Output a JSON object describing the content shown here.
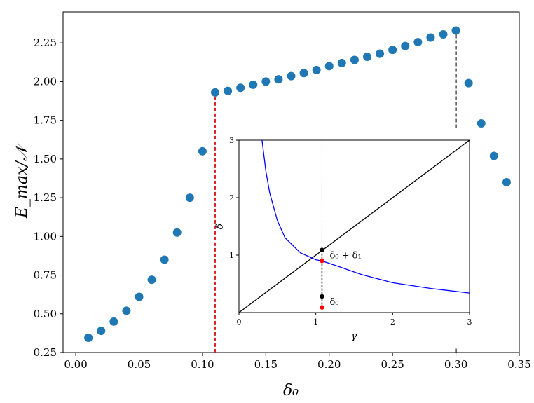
{
  "chart_data": [
    {
      "type": "scatter",
      "title": "",
      "xlabel": "δ₀",
      "ylabel": "E_max/𝒩",
      "xlim": [
        -0.01,
        0.35
      ],
      "ylim": [
        0.25,
        2.45
      ],
      "xticks": [
        "0.00",
        "0.05",
        "0.10",
        "0.15",
        "0.20",
        "0.25",
        "0.30",
        "0.35"
      ],
      "yticks": [
        "0.25",
        "0.50",
        "0.75",
        "1.00",
        "1.25",
        "1.50",
        "1.75",
        "2.00",
        "2.25"
      ],
      "grid": false,
      "marker_color": "#1f77b4",
      "series": [
        {
          "x": [
            0.01,
            0.02,
            0.03,
            0.04,
            0.05,
            0.06,
            0.07,
            0.08,
            0.09,
            0.1,
            0.11,
            0.12,
            0.13,
            0.14,
            0.15,
            0.16,
            0.17,
            0.18,
            0.19,
            0.2,
            0.21,
            0.22,
            0.23,
            0.24,
            0.25,
            0.26,
            0.27,
            0.28,
            0.29,
            0.3,
            0.31,
            0.32,
            0.33,
            0.34
          ],
          "y": [
            0.345,
            0.39,
            0.45,
            0.52,
            0.61,
            0.72,
            0.85,
            1.025,
            1.25,
            1.55,
            1.93,
            1.94,
            1.96,
            1.98,
            2.0,
            2.015,
            2.035,
            2.055,
            2.075,
            2.1,
            2.12,
            2.14,
            2.16,
            2.18,
            2.205,
            2.23,
            2.255,
            2.285,
            2.305,
            2.33,
            1.99,
            1.73,
            1.52,
            1.35
          ]
        }
      ],
      "vlines": [
        {
          "x": 0.11,
          "y_top": 1.93,
          "color": "#d62728",
          "style": "dashed"
        },
        {
          "x": 0.3,
          "y_top": 2.33,
          "color": "#000000",
          "style": "dashed"
        }
      ]
    },
    {
      "type": "line",
      "title": "",
      "xlabel": "γ",
      "ylabel": "δ",
      "xlim": [
        0,
        3
      ],
      "ylim": [
        0,
        3
      ],
      "xticks": [
        "0",
        "1",
        "2",
        "3"
      ],
      "yticks": [
        "1",
        "2",
        "3"
      ],
      "grid": false,
      "series": [
        {
          "kind": "diagonal",
          "color": "#000000",
          "points": [
            [
              0,
              0
            ],
            [
              3,
              3
            ]
          ]
        },
        {
          "kind": "hyperbola",
          "color": "#0000ff",
          "x": [
            0.3,
            0.35,
            0.4,
            0.5,
            0.6,
            0.8,
            1.0,
            1.08,
            1.3,
            1.6,
            2.0,
            2.5,
            3.0
          ],
          "y": [
            3.0,
            2.46,
            2.08,
            1.6,
            1.3,
            1.04,
            0.92,
            0.9,
            0.8,
            0.66,
            0.52,
            0.42,
            0.34
          ]
        }
      ],
      "vline": {
        "x": 1.08,
        "color": "#ff0000",
        "style": "dotted"
      },
      "points": [
        {
          "x": 1.08,
          "y": 1.09,
          "color": "#000000"
        },
        {
          "x": 1.08,
          "y": 0.9,
          "color": "#ff0000"
        },
        {
          "x": 1.08,
          "y": 0.28,
          "color": "#000000"
        },
        {
          "x": 1.08,
          "y": 0.09,
          "color": "#ff0000"
        }
      ],
      "annotations": [
        {
          "text": "δ₀ + δ₁",
          "x": 1.08,
          "y": 1.09
        },
        {
          "text": "δ₀",
          "x": 1.08,
          "y": 0.28
        }
      ]
    }
  ]
}
